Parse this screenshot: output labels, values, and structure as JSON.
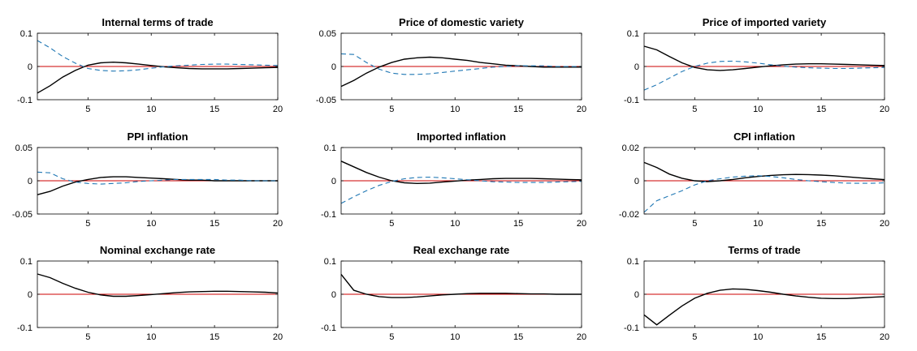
{
  "chart_data": [
    {
      "type": "line",
      "title": "Internal terms of trade",
      "ylim": [
        -0.1,
        0.1
      ],
      "yticks": [
        "0.1",
        "0",
        "-0.1"
      ],
      "ytick_values": [
        0.1,
        0,
        -0.1
      ],
      "xlim": [
        1,
        20
      ],
      "xticks": [
        "5",
        "10",
        "15",
        "20"
      ],
      "xtick_values": [
        5,
        10,
        15,
        20
      ],
      "grid": false,
      "zero_line": true,
      "x": [
        1,
        2,
        3,
        4,
        5,
        6,
        7,
        8,
        9,
        10,
        11,
        12,
        13,
        14,
        15,
        16,
        17,
        18,
        19,
        20
      ],
      "series": [
        {
          "style": "solid",
          "color": "#000000",
          "values": [
            -0.08,
            -0.058,
            -0.032,
            -0.012,
            0.004,
            0.011,
            0.013,
            0.011,
            0.007,
            0.003,
            -0.001,
            -0.004,
            -0.006,
            -0.007,
            -0.007,
            -0.007,
            -0.006,
            -0.005,
            -0.004,
            -0.003
          ]
        },
        {
          "style": "dashed",
          "color": "#1f77b4",
          "values": [
            0.078,
            0.056,
            0.03,
            0.01,
            -0.006,
            -0.012,
            -0.014,
            -0.013,
            -0.01,
            -0.005,
            -0.001,
            0.002,
            0.004,
            0.006,
            0.007,
            0.007,
            0.006,
            0.005,
            0.004,
            0.003
          ]
        }
      ]
    },
    {
      "type": "line",
      "title": "Price of domestic variety",
      "ylim": [
        -0.05,
        0.05
      ],
      "yticks": [
        "0.05",
        "0",
        "-0.05"
      ],
      "ytick_values": [
        0.05,
        0,
        -0.05
      ],
      "xlim": [
        1,
        20
      ],
      "xticks": [
        "5",
        "10",
        "15",
        "20"
      ],
      "xtick_values": [
        5,
        10,
        15,
        20
      ],
      "grid": false,
      "zero_line": true,
      "x": [
        1,
        2,
        3,
        4,
        5,
        6,
        7,
        8,
        9,
        10,
        11,
        12,
        13,
        14,
        15,
        16,
        17,
        18,
        19,
        20
      ],
      "series": [
        {
          "style": "solid",
          "color": "#000000",
          "values": [
            -0.03,
            -0.021,
            -0.01,
            -0.001,
            0.006,
            0.011,
            0.013,
            0.014,
            0.013,
            0.011,
            0.009,
            0.006,
            0.004,
            0.002,
            0.001,
            0.0,
            -0.001,
            -0.001,
            -0.001,
            -0.001
          ]
        },
        {
          "style": "dashed",
          "color": "#1f77b4",
          "values": [
            0.019,
            0.018,
            0.006,
            -0.004,
            -0.01,
            -0.012,
            -0.012,
            -0.011,
            -0.009,
            -0.007,
            -0.005,
            -0.003,
            -0.001,
            0.0,
            0.001,
            0.001,
            0.001,
            0.0,
            0.0,
            0.0
          ]
        }
      ]
    },
    {
      "type": "line",
      "title": "Price of imported variety",
      "ylim": [
        -0.1,
        0.1
      ],
      "yticks": [
        "0.1",
        "0",
        "-0.1"
      ],
      "ytick_values": [
        0.1,
        0,
        -0.1
      ],
      "xlim": [
        1,
        20
      ],
      "xticks": [
        "5",
        "10",
        "15",
        "20"
      ],
      "xtick_values": [
        5,
        10,
        15,
        20
      ],
      "grid": false,
      "zero_line": true,
      "x": [
        1,
        2,
        3,
        4,
        5,
        6,
        7,
        8,
        9,
        10,
        11,
        12,
        13,
        14,
        15,
        16,
        17,
        18,
        19,
        20
      ],
      "series": [
        {
          "style": "solid",
          "color": "#000000",
          "values": [
            0.061,
            0.05,
            0.03,
            0.011,
            -0.003,
            -0.01,
            -0.012,
            -0.01,
            -0.006,
            -0.002,
            0.002,
            0.005,
            0.007,
            0.008,
            0.008,
            0.007,
            0.006,
            0.005,
            0.004,
            0.003
          ]
        },
        {
          "style": "dashed",
          "color": "#1f77b4",
          "values": [
            -0.071,
            -0.055,
            -0.035,
            -0.015,
            0.0,
            0.01,
            0.015,
            0.016,
            0.014,
            0.01,
            0.005,
            0.001,
            -0.002,
            -0.004,
            -0.005,
            -0.006,
            -0.006,
            -0.005,
            -0.004,
            -0.003
          ]
        }
      ]
    },
    {
      "type": "line",
      "title": "PPI inflation",
      "ylim": [
        -0.05,
        0.05
      ],
      "yticks": [
        "0.05",
        "0",
        "-0.05"
      ],
      "ytick_values": [
        0.05,
        0,
        -0.05
      ],
      "xlim": [
        1,
        20
      ],
      "xticks": [
        "5",
        "10",
        "15",
        "20"
      ],
      "xtick_values": [
        5,
        10,
        15,
        20
      ],
      "grid": false,
      "zero_line": true,
      "x": [
        1,
        2,
        3,
        4,
        5,
        6,
        7,
        8,
        9,
        10,
        11,
        12,
        13,
        14,
        15,
        16,
        17,
        18,
        19,
        20
      ],
      "series": [
        {
          "style": "solid",
          "color": "#000000",
          "values": [
            -0.021,
            -0.016,
            -0.008,
            -0.002,
            0.002,
            0.005,
            0.006,
            0.006,
            0.005,
            0.004,
            0.003,
            0.002,
            0.001,
            0.001,
            0.0,
            0.0,
            0.0,
            0.0,
            0.0,
            0.0
          ]
        },
        {
          "style": "dashed",
          "color": "#1f77b4",
          "values": [
            0.013,
            0.012,
            0.003,
            -0.002,
            -0.004,
            -0.005,
            -0.004,
            -0.003,
            -0.001,
            0.0,
            0.001,
            0.002,
            0.002,
            0.002,
            0.002,
            0.001,
            0.001,
            0.0,
            0.0,
            0.0
          ]
        }
      ]
    },
    {
      "type": "line",
      "title": "Imported inflation",
      "ylim": [
        -0.1,
        0.1
      ],
      "yticks": [
        "0.1",
        "0",
        "-0.1"
      ],
      "ytick_values": [
        0.1,
        0,
        -0.1
      ],
      "xlim": [
        1,
        20
      ],
      "xticks": [
        "5",
        "10",
        "15",
        "20"
      ],
      "xtick_values": [
        5,
        10,
        15,
        20
      ],
      "grid": false,
      "zero_line": true,
      "x": [
        1,
        2,
        3,
        4,
        5,
        6,
        7,
        8,
        9,
        10,
        11,
        12,
        13,
        14,
        15,
        16,
        17,
        18,
        19,
        20
      ],
      "series": [
        {
          "style": "solid",
          "color": "#000000",
          "values": [
            0.059,
            0.042,
            0.025,
            0.011,
            0.0,
            -0.006,
            -0.008,
            -0.007,
            -0.004,
            -0.001,
            0.002,
            0.004,
            0.006,
            0.007,
            0.007,
            0.007,
            0.006,
            0.005,
            0.004,
            0.003
          ]
        },
        {
          "style": "dashed",
          "color": "#1f77b4",
          "values": [
            -0.068,
            -0.048,
            -0.03,
            -0.014,
            -0.002,
            0.006,
            0.01,
            0.011,
            0.009,
            0.006,
            0.003,
            0.0,
            -0.003,
            -0.004,
            -0.005,
            -0.005,
            -0.005,
            -0.004,
            -0.003,
            -0.002
          ]
        }
      ]
    },
    {
      "type": "line",
      "title": "CPI inflation",
      "ylim": [
        -0.02,
        0.02
      ],
      "yticks": [
        "0.02",
        "0",
        "-0.02"
      ],
      "ytick_values": [
        0.02,
        0,
        -0.02
      ],
      "xlim": [
        1,
        20
      ],
      "xticks": [
        "5",
        "10",
        "15",
        "20"
      ],
      "xtick_values": [
        5,
        10,
        15,
        20
      ],
      "grid": false,
      "zero_line": true,
      "x": [
        1,
        2,
        3,
        4,
        5,
        6,
        7,
        8,
        9,
        10,
        11,
        12,
        13,
        14,
        15,
        16,
        17,
        18,
        19,
        20
      ],
      "series": [
        {
          "style": "solid",
          "color": "#000000",
          "values": [
            0.011,
            0.008,
            0.004,
            0.0015,
            0.0,
            -0.0005,
            0.0,
            0.0008,
            0.0018,
            0.0026,
            0.0032,
            0.0036,
            0.0038,
            0.0037,
            0.0034,
            0.003,
            0.0024,
            0.0018,
            0.0012,
            0.0007
          ]
        },
        {
          "style": "dashed",
          "color": "#1f77b4",
          "values": [
            -0.019,
            -0.012,
            -0.009,
            -0.006,
            -0.0025,
            0.0,
            0.0012,
            0.0022,
            0.0028,
            0.003,
            0.0026,
            0.0018,
            0.0008,
            0.0,
            -0.0006,
            -0.001,
            -0.0014,
            -0.0015,
            -0.0015,
            -0.0012
          ]
        }
      ]
    },
    {
      "type": "line",
      "title": "Nominal exchange rate",
      "ylim": [
        -0.1,
        0.1
      ],
      "yticks": [
        "0.1",
        "0",
        "-0.1"
      ],
      "ytick_values": [
        0.1,
        0,
        -0.1
      ],
      "xlim": [
        1,
        20
      ],
      "xticks": [
        "5",
        "10",
        "15",
        "20"
      ],
      "xtick_values": [
        5,
        10,
        15,
        20
      ],
      "grid": false,
      "zero_line": true,
      "x": [
        1,
        2,
        3,
        4,
        5,
        6,
        7,
        8,
        9,
        10,
        11,
        12,
        13,
        14,
        15,
        16,
        17,
        18,
        19,
        20
      ],
      "series": [
        {
          "style": "solid",
          "color": "#000000",
          "values": [
            0.061,
            0.05,
            0.033,
            0.018,
            0.006,
            -0.002,
            -0.006,
            -0.006,
            -0.004,
            -0.001,
            0.002,
            0.005,
            0.007,
            0.008,
            0.009,
            0.009,
            0.008,
            0.007,
            0.006,
            0.004
          ]
        }
      ]
    },
    {
      "type": "line",
      "title": "Real exchange rate",
      "ylim": [
        -0.1,
        0.1
      ],
      "yticks": [
        "0.1",
        "0",
        "-0.1"
      ],
      "ytick_values": [
        0.1,
        0,
        -0.1
      ],
      "xlim": [
        1,
        20
      ],
      "xticks": [
        "5",
        "10",
        "15",
        "20"
      ],
      "xtick_values": [
        5,
        10,
        15,
        20
      ],
      "grid": false,
      "zero_line": true,
      "x": [
        1,
        2,
        3,
        4,
        5,
        6,
        7,
        8,
        9,
        10,
        11,
        12,
        13,
        14,
        15,
        16,
        17,
        18,
        19,
        20
      ],
      "series": [
        {
          "style": "solid",
          "color": "#000000",
          "values": [
            0.06,
            0.012,
            0.0,
            -0.007,
            -0.01,
            -0.01,
            -0.008,
            -0.005,
            -0.002,
            0.0,
            0.002,
            0.003,
            0.003,
            0.003,
            0.002,
            0.001,
            0.001,
            0.0,
            0.0,
            0.0
          ]
        }
      ]
    },
    {
      "type": "line",
      "title": "Terms of trade",
      "ylim": [
        -0.1,
        0.1
      ],
      "yticks": [
        "0.1",
        "0",
        "-0.1"
      ],
      "ytick_values": [
        0.1,
        0,
        -0.1
      ],
      "xlim": [
        1,
        20
      ],
      "xticks": [
        "5",
        "10",
        "15",
        "20"
      ],
      "xtick_values": [
        5,
        10,
        15,
        20
      ],
      "grid": false,
      "zero_line": true,
      "x": [
        1,
        2,
        3,
        4,
        5,
        6,
        7,
        8,
        9,
        10,
        11,
        12,
        13,
        14,
        15,
        16,
        17,
        18,
        19,
        20
      ],
      "series": [
        {
          "style": "solid",
          "color": "#000000",
          "values": [
            -0.062,
            -0.092,
            -0.063,
            -0.035,
            -0.012,
            0.003,
            0.012,
            0.016,
            0.015,
            0.011,
            0.006,
            0.0,
            -0.005,
            -0.009,
            -0.012,
            -0.013,
            -0.013,
            -0.011,
            -0.009,
            -0.007
          ]
        }
      ]
    }
  ],
  "colors": {
    "zero_line": "#cc0000",
    "axis": "#000000"
  }
}
